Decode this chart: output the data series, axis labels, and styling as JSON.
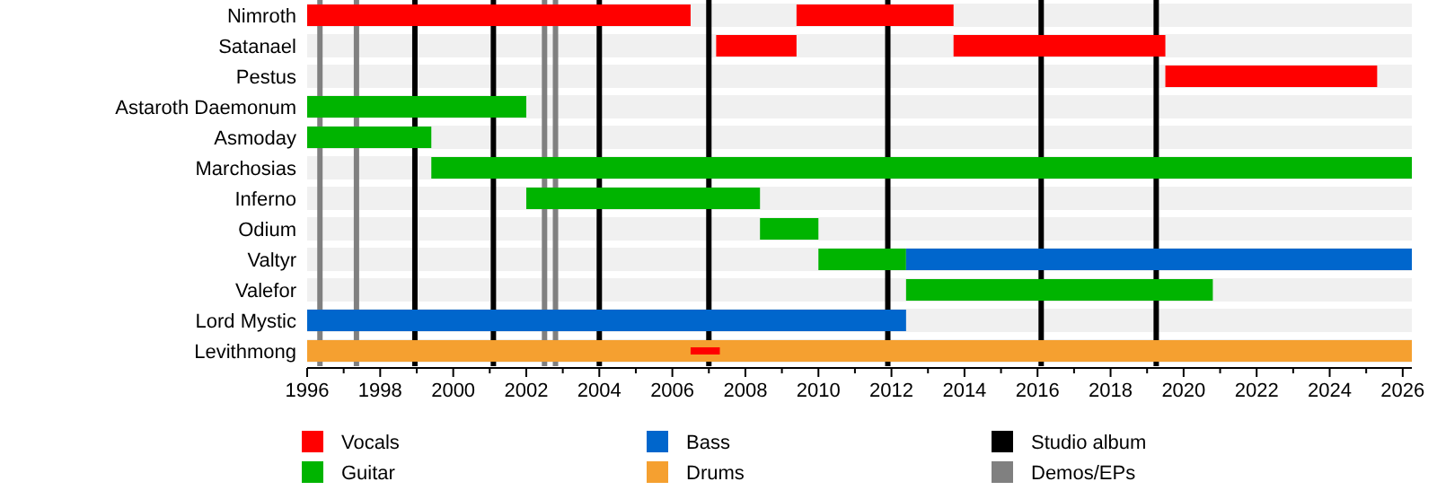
{
  "chart_data": {
    "type": "bar",
    "orientation": "horizontal",
    "categories": [
      "Nimroth",
      "Satanael",
      "Pestus",
      "Astaroth Daemonum",
      "Asmoday",
      "Marchosias",
      "Inferno",
      "Odium",
      "Valtyr",
      "Valefor",
      "Lord Mystic",
      "Levithmong"
    ],
    "series": [
      {
        "name": "Vocals",
        "color": "#ff0000",
        "base": [
          1996,
          2007.2,
          2019.5,
          null,
          null,
          null,
          null,
          null,
          null,
          null,
          null,
          2006.5
        ],
        "values": [
          10.5,
          2.2,
          5.8,
          null,
          null,
          null,
          null,
          null,
          null,
          null,
          null,
          0.8
        ]
      },
      {
        "name": "Guitar",
        "color": "#00b400",
        "base": [
          null,
          null,
          null,
          1996,
          1996,
          1999.4,
          2002.0,
          2008.4,
          2010.0,
          2012.4,
          null,
          null
        ],
        "values": [
          null,
          null,
          null,
          6.0,
          3.4,
          26.85,
          6.4,
          1.6,
          2.4,
          8.4,
          null,
          null
        ]
      },
      {
        "name": "Bass",
        "color": "#0066cc",
        "base": [
          null,
          null,
          null,
          null,
          null,
          null,
          null,
          null,
          2012.4,
          null,
          1996,
          null
        ],
        "values": [
          null,
          null,
          null,
          null,
          null,
          null,
          null,
          null,
          13.85,
          null,
          16.4,
          null
        ]
      },
      {
        "name": "Drums",
        "color": "#f5a030",
        "base": [
          null,
          null,
          null,
          null,
          null,
          null,
          null,
          null,
          null,
          null,
          null,
          1996
        ],
        "values": [
          null,
          null,
          null,
          null,
          null,
          null,
          null,
          null,
          null,
          null,
          null,
          30.25
        ]
      },
      {
        "color": "#ff0000",
        "base": [
          2009.4,
          2013.7,
          null,
          null,
          null,
          null,
          null,
          null,
          null,
          null,
          null,
          null
        ],
        "values": [
          4.3,
          5.8,
          null,
          null,
          null,
          null,
          null,
          null,
          null,
          null,
          null,
          null
        ]
      }
    ],
    "xlim": [
      1996,
      2026.25
    ],
    "xticks": [
      1996,
      1998,
      2000,
      2002,
      2004,
      2006,
      2008,
      2010,
      2012,
      2014,
      2016,
      2018,
      2020,
      2022,
      2024,
      2026
    ],
    "ref_lines": [
      {
        "axis": "x",
        "value": 1998.95,
        "label": "Studio album",
        "color": "#000000"
      },
      {
        "axis": "x",
        "value": 2001.1,
        "color": "#000000"
      },
      {
        "axis": "x",
        "value": 2004.0,
        "color": "#000000"
      },
      {
        "axis": "x",
        "value": 2007.0,
        "color": "#000000"
      },
      {
        "axis": "x",
        "value": 2011.9,
        "color": "#000000"
      },
      {
        "axis": "x",
        "value": 2016.1,
        "color": "#000000"
      },
      {
        "axis": "x",
        "value": 2019.25,
        "color": "#000000"
      },
      {
        "axis": "x",
        "value": 1996.35,
        "label": "Demos/EPs",
        "color": "#808080"
      },
      {
        "axis": "x",
        "value": 1997.35,
        "color": "#808080"
      },
      {
        "axis": "x",
        "value": 2002.5,
        "color": "#808080"
      },
      {
        "axis": "x",
        "value": 2002.8,
        "color": "#808080"
      }
    ],
    "legend": "bottom"
  }
}
